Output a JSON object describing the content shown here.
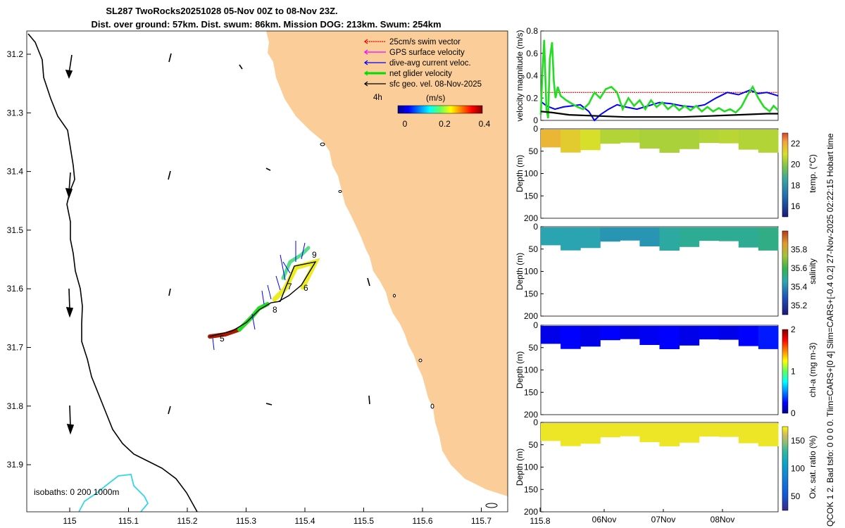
{
  "header": {
    "title_line1": "SL287 TwoRocks20251028 05-Nov 00Z to 08-Nov 23Z.",
    "title_line2": "Dist. over ground: 57km. Dist. swum: 86km. Mission DOG: 213km. Swum: 254km",
    "side_note": "QCOK 1  2. Bad tsfo: 0  0  0  0. Tlim=CARS+[0 4] Slim=CARS+[-0.4 0.2] 27-Nov-2025 02:22:15 Hobart time"
  },
  "map": {
    "xticks": [
      "115",
      "115.1",
      "115.2",
      "115.3",
      "115.4",
      "115.5",
      "115.6",
      "115.7",
      "115.8"
    ],
    "yticks": [
      "31.2",
      "31.3",
      "31.4",
      "31.5",
      "31.6",
      "31.7",
      "31.8",
      "31.9"
    ],
    "legend": [
      {
        "label": "25cm/s swim vector",
        "color": "#ff0000"
      },
      {
        "label": "GPS surface velocity",
        "color": "#ff00ff"
      },
      {
        "label": "dive-avg current veloc.",
        "color": "#0000ff"
      },
      {
        "label": "net glider velocity",
        "color": "#00dd00"
      },
      {
        "label": "sfc geo. vel. 08-Nov-2025",
        "color": "#000000"
      }
    ],
    "legend_note": "4h",
    "colorbar_title": "(m/s)",
    "colorbar_ticks": [
      "0",
      "0.2",
      "0.4"
    ],
    "isobaths_label": "isobaths: 0   200  1000m",
    "track_labels": [
      "5",
      "6",
      "7",
      "8",
      "9"
    ],
    "land_color": "#fbcd98",
    "isobath_color": "#33d6e6"
  },
  "chart_data": [
    {
      "type": "line",
      "title": "",
      "ylabel": "velocity magnitude (m/s)",
      "ylim": [
        0,
        0.8
      ],
      "yticks": [
        "0",
        "0.2",
        "0.4",
        "0.6",
        "0.8"
      ],
      "x_domain": [
        0,
        4.2
      ],
      "series": [
        {
          "name": "25cm/s swim vector",
          "color": "#ff0000",
          "x": [
            0,
            4.2
          ],
          "y": [
            0.25,
            0.25
          ]
        },
        {
          "name": "dive-avg current veloc.",
          "color": "#0000ff",
          "x": [
            0,
            0.1,
            0.25,
            0.4,
            0.55,
            0.7,
            0.85,
            0.95,
            1.05,
            1.2,
            1.35,
            1.5,
            1.7,
            1.9,
            2.1,
            2.3,
            2.5,
            2.7,
            2.9,
            3.1,
            3.3,
            3.5,
            3.7,
            3.85,
            4.0,
            4.2
          ],
          "y": [
            0.17,
            0.13,
            0.1,
            0.12,
            0.13,
            0.14,
            0.08,
            0.0,
            0.05,
            0.1,
            0.14,
            0.12,
            0.1,
            0.13,
            0.16,
            0.15,
            0.13,
            0.12,
            0.14,
            0.2,
            0.25,
            0.23,
            0.27,
            0.24,
            0.25,
            0.22
          ]
        },
        {
          "name": "net glider velocity",
          "color": "#22dd22",
          "x": [
            0,
            0.03,
            0.06,
            0.1,
            0.13,
            0.16,
            0.2,
            0.23,
            0.26,
            0.3,
            0.35,
            0.45,
            0.55,
            0.65,
            0.75,
            0.85,
            0.95,
            1.05,
            1.15,
            1.25,
            1.35,
            1.45,
            1.55,
            1.65,
            1.75,
            1.85,
            1.95,
            2.05,
            2.15,
            2.25,
            2.35,
            2.45,
            2.55,
            2.65,
            2.75,
            2.85,
            2.95,
            3.05,
            3.15,
            3.25,
            3.35,
            3.45,
            3.55,
            3.65,
            3.75,
            3.85,
            3.95,
            4.05,
            4.12,
            4.2
          ],
          "y": [
            0.05,
            0.45,
            0.72,
            0.1,
            0.02,
            0.55,
            0.7,
            0.35,
            0.2,
            0.3,
            0.22,
            0.18,
            0.15,
            0.12,
            0.1,
            0.15,
            0.25,
            0.2,
            0.28,
            0.3,
            0.25,
            0.1,
            0.2,
            0.13,
            0.18,
            0.1,
            0.18,
            0.12,
            0.16,
            0.1,
            0.14,
            0.09,
            0.13,
            0.09,
            0.13,
            0.08,
            0.12,
            0.08,
            0.11,
            0.08,
            0.1,
            0.07,
            0.12,
            0.22,
            0.3,
            0.2,
            0.12,
            0.08,
            0.13,
            0.09
          ]
        },
        {
          "name": "surface geostrophic",
          "color": "#000000",
          "x": [
            0,
            0.2,
            0.5,
            1.0,
            1.5,
            2.0,
            2.5,
            3.0,
            3.5,
            4.0,
            4.2
          ],
          "y": [
            0.08,
            0.07,
            0.05,
            0.04,
            0.03,
            0.03,
            0.03,
            0.04,
            0.05,
            0.06,
            0.06
          ]
        }
      ]
    },
    {
      "type": "heatmap",
      "ylabel": "Depth (m)",
      "cbar_label": "temp. (°C)",
      "ylim": [
        0,
        200
      ],
      "yticks": [
        "0",
        "50",
        "100",
        "150",
        "200"
      ],
      "cbar_range": [
        15,
        23
      ],
      "cbar_ticks": [
        "16",
        "18",
        "20",
        "22"
      ],
      "column_values": [
        21.8,
        21.4,
        21.0,
        20.5,
        20.5,
        20.4,
        20.4,
        20.4,
        20.5,
        20.6,
        20.5,
        20.5
      ]
    },
    {
      "type": "heatmap",
      "ylabel": "Depth (m)",
      "cbar_label": "salinity",
      "ylim": [
        0,
        200
      ],
      "yticks": [
        "0",
        "50",
        "100",
        "150",
        "200"
      ],
      "cbar_range": [
        35.1,
        36.0
      ],
      "cbar_ticks": [
        "35.2",
        "35.4",
        "35.6",
        "35.8"
      ],
      "column_values": [
        35.45,
        35.45,
        35.45,
        35.42,
        35.42,
        35.42,
        35.48,
        35.5,
        35.5,
        35.5,
        35.5,
        35.52
      ]
    },
    {
      "type": "heatmap",
      "ylabel": "Depth (m)",
      "cbar_label": "chl-a  (mg m-3)",
      "ylim": [
        0,
        200
      ],
      "yticks": [
        "0",
        "50",
        "100",
        "150",
        "200"
      ],
      "cbar_range": [
        0,
        2
      ],
      "cbar_ticks": [
        "0",
        "1",
        "2"
      ],
      "column_values": [
        0.2,
        0.25,
        0.2,
        0.25,
        0.2,
        0.22,
        0.25,
        0.2,
        0.22,
        0.2,
        0.25,
        0.3
      ]
    },
    {
      "type": "heatmap",
      "ylabel": "Depth (m)",
      "cbar_label": "Ox. sat. ratio (%)",
      "ylim": [
        0,
        200
      ],
      "yticks": [
        "0",
        "50",
        "100",
        "150",
        "200"
      ],
      "cbar_range": [
        25,
        175
      ],
      "cbar_ticks": [
        "50",
        "100",
        "150"
      ],
      "column_values": [
        170,
        170,
        170,
        170,
        170,
        170,
        170,
        170,
        170,
        170,
        170,
        170
      ],
      "xticks": [
        "06Nov",
        "07Nov",
        "08Nov"
      ]
    }
  ]
}
